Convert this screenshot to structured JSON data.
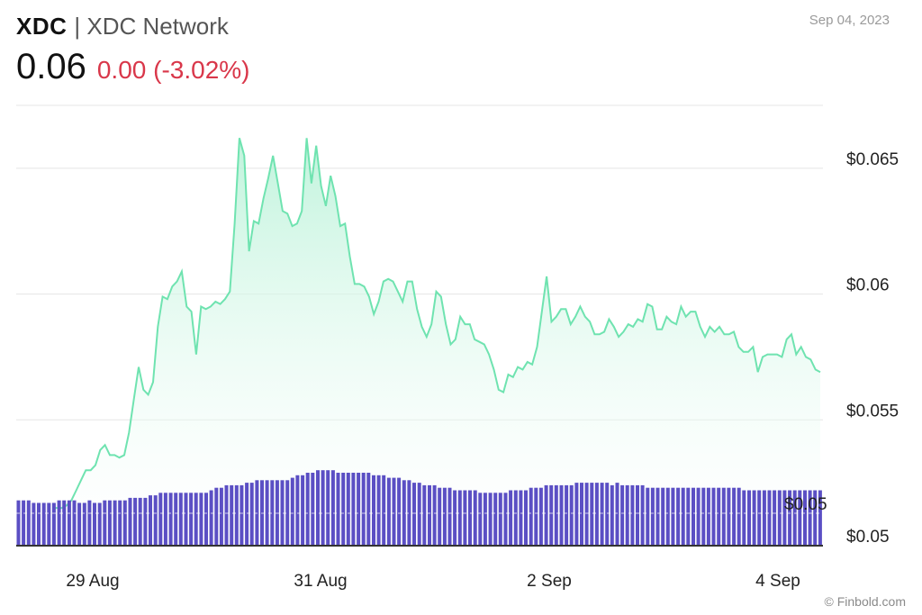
{
  "header": {
    "ticker": "XDC",
    "separator_name": "| XDC Network",
    "price": "0.06",
    "change": "0.00 (-3.02%)",
    "change_color": "#d9374a",
    "date": "Sep 04, 2023"
  },
  "footer": {
    "credit": "© Finbold.com"
  },
  "colors": {
    "line": "#6fe3b0",
    "fill_top": "#b9f2d8",
    "volume": "#5b4fc4",
    "grid": "#e5e5e5"
  },
  "chart_data": {
    "type": "area",
    "x_tick_labels": [
      "29 Aug",
      "31 Aug",
      "2 Sep",
      "4 Sep"
    ],
    "y_tick_labels": [
      "$0.065",
      "$0.06",
      "$0.055",
      "$0.05"
    ],
    "volume_overlay_label": "$0.05",
    "ylim": [
      0.05,
      0.0675
    ],
    "grid": true,
    "price": [
      0.0515,
      0.0515,
      0.0515,
      0.0516,
      0.0518,
      0.0522,
      0.0526,
      0.053,
      0.053,
      0.0532,
      0.0538,
      0.054,
      0.0536,
      0.0536,
      0.0535,
      0.0536,
      0.0545,
      0.0558,
      0.0571,
      0.0562,
      0.056,
      0.0565,
      0.0587,
      0.0599,
      0.0598,
      0.0603,
      0.0605,
      0.0609,
      0.0595,
      0.0593,
      0.0576,
      0.0595,
      0.0594,
      0.0595,
      0.0597,
      0.0596,
      0.0598,
      0.0601,
      0.0628,
      0.0662,
      0.0655,
      0.0617,
      0.0629,
      0.0628,
      0.0638,
      0.0646,
      0.0655,
      0.0644,
      0.0633,
      0.0632,
      0.0627,
      0.0628,
      0.0633,
      0.0662,
      0.0644,
      0.0659,
      0.0643,
      0.0635,
      0.0647,
      0.0639,
      0.0627,
      0.0628,
      0.0615,
      0.0604,
      0.0604,
      0.0603,
      0.0599,
      0.0592,
      0.0597,
      0.0605,
      0.0606,
      0.0605,
      0.0601,
      0.0597,
      0.0605,
      0.0605,
      0.0594,
      0.0587,
      0.0583,
      0.0588,
      0.0601,
      0.0599,
      0.0588,
      0.058,
      0.0582,
      0.0591,
      0.0588,
      0.0588,
      0.0582,
      0.0581,
      0.058,
      0.0576,
      0.057,
      0.0562,
      0.0561,
      0.0568,
      0.0567,
      0.0571,
      0.057,
      0.0573,
      0.0572,
      0.0579,
      0.0593,
      0.0607,
      0.0589,
      0.0591,
      0.0594,
      0.0594,
      0.0588,
      0.0591,
      0.0595,
      0.0591,
      0.0589,
      0.0584,
      0.0584,
      0.0585,
      0.059,
      0.0587,
      0.0583,
      0.0585,
      0.0588,
      0.0587,
      0.059,
      0.0589,
      0.0596,
      0.0595,
      0.0586,
      0.0586,
      0.0591,
      0.0589,
      0.0588,
      0.0595,
      0.0591,
      0.0593,
      0.0593,
      0.0587,
      0.0583,
      0.0587,
      0.0585,
      0.0587,
      0.0584,
      0.0584,
      0.0585,
      0.0579,
      0.0577,
      0.0577,
      0.0579,
      0.0569,
      0.0575,
      0.0576,
      0.0576,
      0.0576,
      0.0575,
      0.0582,
      0.0584,
      0.0576,
      0.0579,
      0.0575,
      0.0574,
      0.057,
      0.0569
    ],
    "volume": [
      0.0518,
      0.0518,
      0.0518,
      0.0517,
      0.0517,
      0.0517,
      0.0517,
      0.0517,
      0.0518,
      0.0518,
      0.0518,
      0.0518,
      0.0517,
      0.0517,
      0.0518,
      0.0517,
      0.0517,
      0.0518,
      0.0518,
      0.0518,
      0.0518,
      0.0518,
      0.0519,
      0.0519,
      0.0519,
      0.0519,
      0.052,
      0.052,
      0.0521,
      0.0521,
      0.0521,
      0.0521,
      0.0521,
      0.0521,
      0.0521,
      0.0521,
      0.0521,
      0.0521,
      0.0522,
      0.0523,
      0.0523,
      0.0524,
      0.0524,
      0.0524,
      0.0524,
      0.0525,
      0.0525,
      0.0526,
      0.0526,
      0.0526,
      0.0526,
      0.0526,
      0.0526,
      0.0526,
      0.0527,
      0.0528,
      0.0528,
      0.0529,
      0.0529,
      0.053,
      0.053,
      0.053,
      0.053,
      0.0529,
      0.0529,
      0.0529,
      0.0529,
      0.0529,
      0.0529,
      0.0529,
      0.0528,
      0.0528,
      0.0528,
      0.0527,
      0.0527,
      0.0527,
      0.0526,
      0.0526,
      0.0525,
      0.0525,
      0.0524,
      0.0524,
      0.0524,
      0.0523,
      0.0523,
      0.0523,
      0.0522,
      0.0522,
      0.0522,
      0.0522,
      0.0522,
      0.0521,
      0.0521,
      0.0521,
      0.0521,
      0.0521,
      0.0521,
      0.0522,
      0.0522,
      0.0522,
      0.0522,
      0.0523,
      0.0523,
      0.0523,
      0.0524,
      0.0524,
      0.0524,
      0.0524,
      0.0524,
      0.0524,
      0.0525,
      0.0525,
      0.0525,
      0.0525,
      0.0525,
      0.0525,
      0.0525,
      0.0524,
      0.0525,
      0.0524,
      0.0524,
      0.0524,
      0.0524,
      0.0524,
      0.0523,
      0.0523,
      0.0523,
      0.0523,
      0.0523,
      0.0523,
      0.0523,
      0.0523,
      0.0523,
      0.0523,
      0.0523,
      0.0523,
      0.0523,
      0.0523,
      0.0523,
      0.0523,
      0.0523,
      0.0523,
      0.0523,
      0.0522,
      0.0522,
      0.0522,
      0.0522,
      0.0522,
      0.0522,
      0.0522,
      0.0522,
      0.0522,
      0.0522,
      0.0522,
      0.0522,
      0.0522,
      0.0522,
      0.0522,
      0.0522
    ]
  }
}
